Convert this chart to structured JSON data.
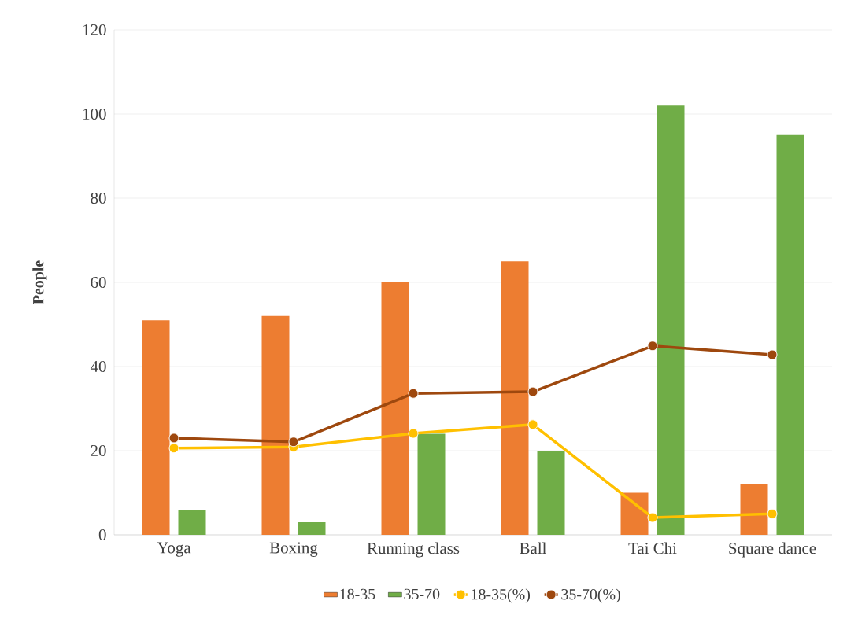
{
  "chart_data": {
    "type": "bar",
    "ylabel": "People",
    "categories": [
      "Yoga",
      "Boxing",
      "Running class",
      "Ball",
      "Tai Chi",
      "Square dance"
    ],
    "series": [
      {
        "name": "18-35",
        "color": "#ed7d31",
        "values": [
          51,
          52,
          60,
          65,
          10,
          12
        ]
      },
      {
        "name": "35-70",
        "color": "#70ad47",
        "values": [
          6,
          3,
          24,
          20,
          102,
          95
        ]
      },
      {
        "name": "18-35(%)",
        "type": "line",
        "color": "#ffc000",
        "values": [
          20.6,
          20.9,
          24.1,
          26.2,
          4.1,
          5.0
        ]
      },
      {
        "name": "35-70(%)",
        "type": "line",
        "color": "#9e480e",
        "values": [
          23.0,
          22.1,
          33.6,
          34.0,
          44.9,
          42.8
        ]
      }
    ],
    "ylim": [
      0,
      120
    ],
    "yticks": [
      0,
      20,
      40,
      60,
      80,
      100,
      120
    ],
    "grid": "y",
    "legend": "bottom",
    "marker": "circle",
    "line_style": "solid"
  }
}
